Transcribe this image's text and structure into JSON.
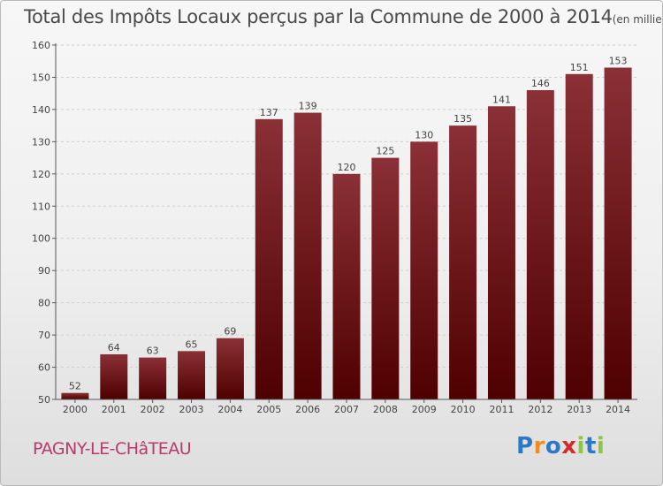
{
  "title": {
    "main": "Total des Impôts Locaux perçus par la Commune de 2000 à 2014",
    "unit": "(en milliers d'€)"
  },
  "commune": "PAGNY-LE-CHâTEAU",
  "logo": {
    "letters": [
      "P",
      "r",
      "o",
      "x",
      "i",
      "t",
      "i"
    ],
    "colors": [
      "#2b79c6",
      "#f18d1e",
      "#2b79c6",
      "#d6292a",
      "#8dc63f",
      "#2b79c6",
      "#8dc63f"
    ]
  },
  "colors": {
    "bar_top": "#8a3036",
    "bar_bottom": "#4f0000",
    "axis": "#555555",
    "grid": "#d0d0d0"
  },
  "chart_data": {
    "type": "bar",
    "title": "Total des Impôts Locaux perçus par la Commune de 2000 à 2014",
    "xlabel": "",
    "ylabel": "",
    "ylim": [
      50,
      160
    ],
    "yticks": [
      50,
      60,
      70,
      80,
      90,
      100,
      110,
      120,
      130,
      140,
      150,
      160
    ],
    "categories": [
      "2000",
      "2001",
      "2002",
      "2003",
      "2004",
      "2005",
      "2006",
      "2007",
      "2008",
      "2009",
      "2010",
      "2011",
      "2012",
      "2013",
      "2014"
    ],
    "values": [
      52,
      64,
      63,
      65,
      69,
      137,
      139,
      120,
      125,
      130,
      135,
      141,
      146,
      151,
      153
    ],
    "grid": true
  }
}
